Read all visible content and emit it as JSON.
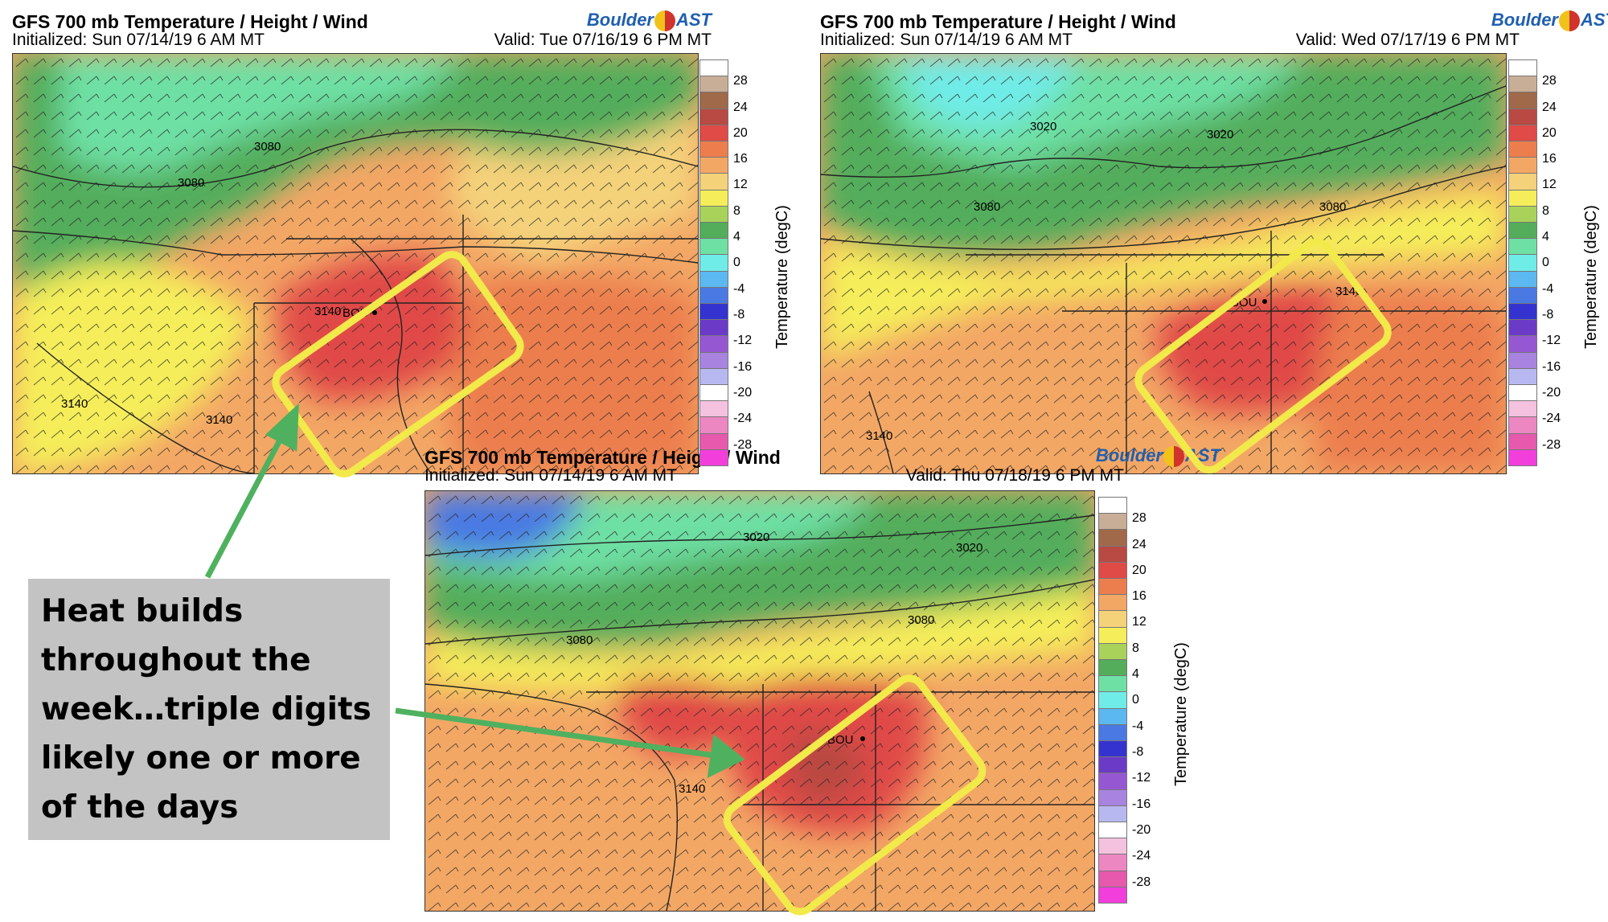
{
  "panels": [
    {
      "title": "GFS 700 mb Temperature / Height / Wind",
      "initialized": "Initialized: Sun 07/14/19 6 AM MT",
      "valid": "Valid: Tue 07/16/19 6 PM MT",
      "brand_left": "Boulder",
      "brand_right": "AST",
      "contour_labels": [
        "3080",
        "3080",
        "3140",
        "3140",
        "3140"
      ],
      "station": "BOU"
    },
    {
      "title": "GFS 700 mb Temperature / Height / Wind",
      "initialized": "Initialized: Sun 07/14/19 6 AM MT",
      "valid": "Valid: Wed 07/17/19 6 PM MT",
      "brand_left": "Boulder",
      "brand_right": "AST",
      "contour_labels": [
        "3020",
        "3020",
        "3080",
        "3080",
        "3140",
        "3140"
      ],
      "station": "BOU"
    },
    {
      "title": "GFS 700 mb Temperature / Height / Wind",
      "initialized": "Initialized: Sun 07/14/19 6 AM MT",
      "valid": "Valid: Thu 07/18/19 6 PM MT",
      "brand_left": "Boulder",
      "brand_right": "AST",
      "contour_labels": [
        "3020",
        "3020",
        "3080",
        "3080",
        "3140"
      ],
      "station": "BOU"
    }
  ],
  "colorbar": {
    "unit_label": "Temperature (degC)",
    "labels": [
      "28",
      "24",
      "20",
      "16",
      "12",
      "8",
      "4",
      "0",
      "-4",
      "-8",
      "-12",
      "-16",
      "-20",
      "-24",
      "-28"
    ],
    "colors": [
      "#ffffff",
      "#c8ae97",
      "#a0694a",
      "#b84a43",
      "#e04a47",
      "#ec7e4e",
      "#f3a765",
      "#f4d27a",
      "#f5ee5a",
      "#a9d25a",
      "#53ad5b",
      "#6ee0a4",
      "#6fece8",
      "#5bb8f0",
      "#4a79e3",
      "#3533cf",
      "#6b3bc8",
      "#9658d2",
      "#a884e0",
      "#b8b8f0",
      "#ffffff",
      "#f4c2df",
      "#ec87c2",
      "#e659ad",
      "#f23fdc"
    ]
  },
  "caption": {
    "text": "Heat builds throughout the week…triple digits likely one or more of the days"
  },
  "colors": {
    "highlight": "#f2e94a",
    "arrow": "#4fb15f",
    "caption_bg": "#c3c3c3",
    "brand": "#1f5fb0"
  }
}
